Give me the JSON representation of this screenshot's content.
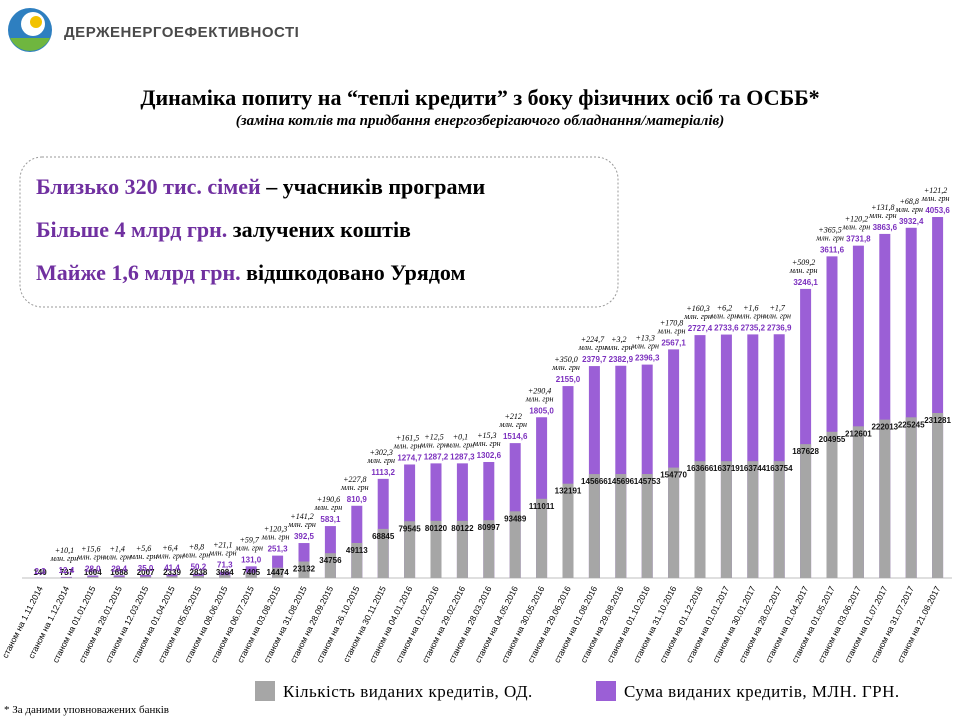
{
  "header": {
    "org": "ДЕРЖЕНЕРГОЕФЕКТИВНОСТІ"
  },
  "highlights": [
    {
      "accent": "Близько 320 тис. сімей",
      "text": "– учасників програми"
    },
    {
      "accent": "Більше 4 млрд грн.",
      "text": "залучених коштів"
    },
    {
      "accent": "Майже 1,6 млрд грн.",
      "text": "відшкодовано Урядом"
    }
  ],
  "footnote": "* За даними уповноважених банків",
  "chart_data": {
    "type": "bar",
    "title": "Динаміка попиту на “теплі кредити” з боку фізичних осіб та ОСББ*",
    "subtitle": "(заміна котлів та придбання енергозберігаючого обладнання/матеріалів)",
    "categories": [
      "станом на 1.11.2014",
      "станом на 1.12.2014",
      "станом на 01.01.2015",
      "станом на 28.01.2015",
      "станом на 12.03.2015",
      "станом на 01.04.2015",
      "станом на 05.05.2015",
      "станом на 08.06.2015",
      "станом на 06.07.2015",
      "станом на 03.08.2015",
      "станом на 31.08.2015",
      "станом на 28.09.2015",
      "станом на 26.10.2015",
      "станом на 30.11.2015",
      "станом на 04.01.2016",
      "станом на 01.02.2016",
      "станом на 29.02.2016",
      "станом на 28.03.2016",
      "станом на 04.05.2016",
      "станом на 30.05.2016",
      "станом на 29.06.2016",
      "станом на 01.08.2016",
      "станом на 29.08.2016",
      "станом на 01.10.2016",
      "станом на 31.10.2016",
      "станом на 01.12.2016",
      "станом на 01.01.2017",
      "станом на 30.01.2017",
      "станом на 28.02.2017",
      "станом на 01.04.2017",
      "станом на 01.05.2017",
      "станом на 03.06.2017",
      "станом на 01.07.2017",
      "станом на 31.07.2017",
      "станом на 21.08.2017"
    ],
    "series": [
      {
        "name": "Кількість виданих кредитів, ОД.",
        "color": "#a6a6a6",
        "values": [
          140,
          737,
          1604,
          1688,
          2007,
          2339,
          2838,
          3984,
          7405,
          14474,
          23132,
          34756,
          49113,
          68845,
          79545,
          80120,
          80122,
          80997,
          93489,
          111011,
          132191,
          145666,
          145696,
          145753,
          154770,
          163666,
          163719,
          163744,
          163754,
          187628,
          204955,
          212601,
          222013,
          225245,
          231281
        ]
      },
      {
        "name": "Сума виданих кредитів, МЛН. ГРН.",
        "color": "#9b5fd6",
        "values": [
          2.3,
          12.4,
          28.0,
          29.4,
          35.0,
          41.4,
          50.2,
          71.3,
          131.0,
          251.3,
          392.5,
          583.1,
          810.9,
          1113.2,
          1274.7,
          1287.2,
          1287.3,
          1302.6,
          1514.6,
          1805.0,
          2155.0,
          2379.7,
          2382.9,
          2396.3,
          2567.1,
          2727.4,
          2733.6,
          2735.2,
          2736.9,
          3246.1,
          3611.6,
          3731.8,
          3863.6,
          3932.4,
          4053.6
        ],
        "value_labels": [
          "2,3",
          "12,4",
          "28,0",
          "29,4",
          "35,0",
          "41,4",
          "50,2",
          "71,3",
          "131,0",
          "251,3",
          "392,5",
          "583,1",
          "810,9",
          "1113,2",
          "1274,7",
          "1287,2",
          "1287,3",
          "1302,6",
          "1514,6",
          "1805,0",
          "2155,0",
          "2379,7",
          "2382,9",
          "2396,3",
          "2567,1",
          "2727,4",
          "2733,6",
          "2735,2",
          "2736,9",
          "3246,1",
          "3611,6",
          "3731,8",
          "3863,6",
          "3932,4",
          "4053,6"
        ]
      }
    ],
    "annotations": [
      "+10,1",
      "+15,6",
      "+1,4",
      "+5,6",
      "+6,4",
      "+8,8",
      "+21,1",
      "+59,7",
      "+120,3",
      "+141,2",
      "+190,6",
      "+227,8",
      "+302,3",
      "+161,5",
      "+12,5",
      "+0,1",
      "+15,3",
      "+212",
      "+290,4",
      "+350,0",
      "+224,7",
      "+3,2",
      "+13,3",
      "+170,8",
      "+160,3",
      "+6,2",
      "+1,6",
      "+1,7",
      "+509,2",
      "+365,5",
      "+120,2",
      "+131,8",
      "+68,8",
      "+121,2"
    ],
    "annotation_unit": "млн. грн"
  }
}
